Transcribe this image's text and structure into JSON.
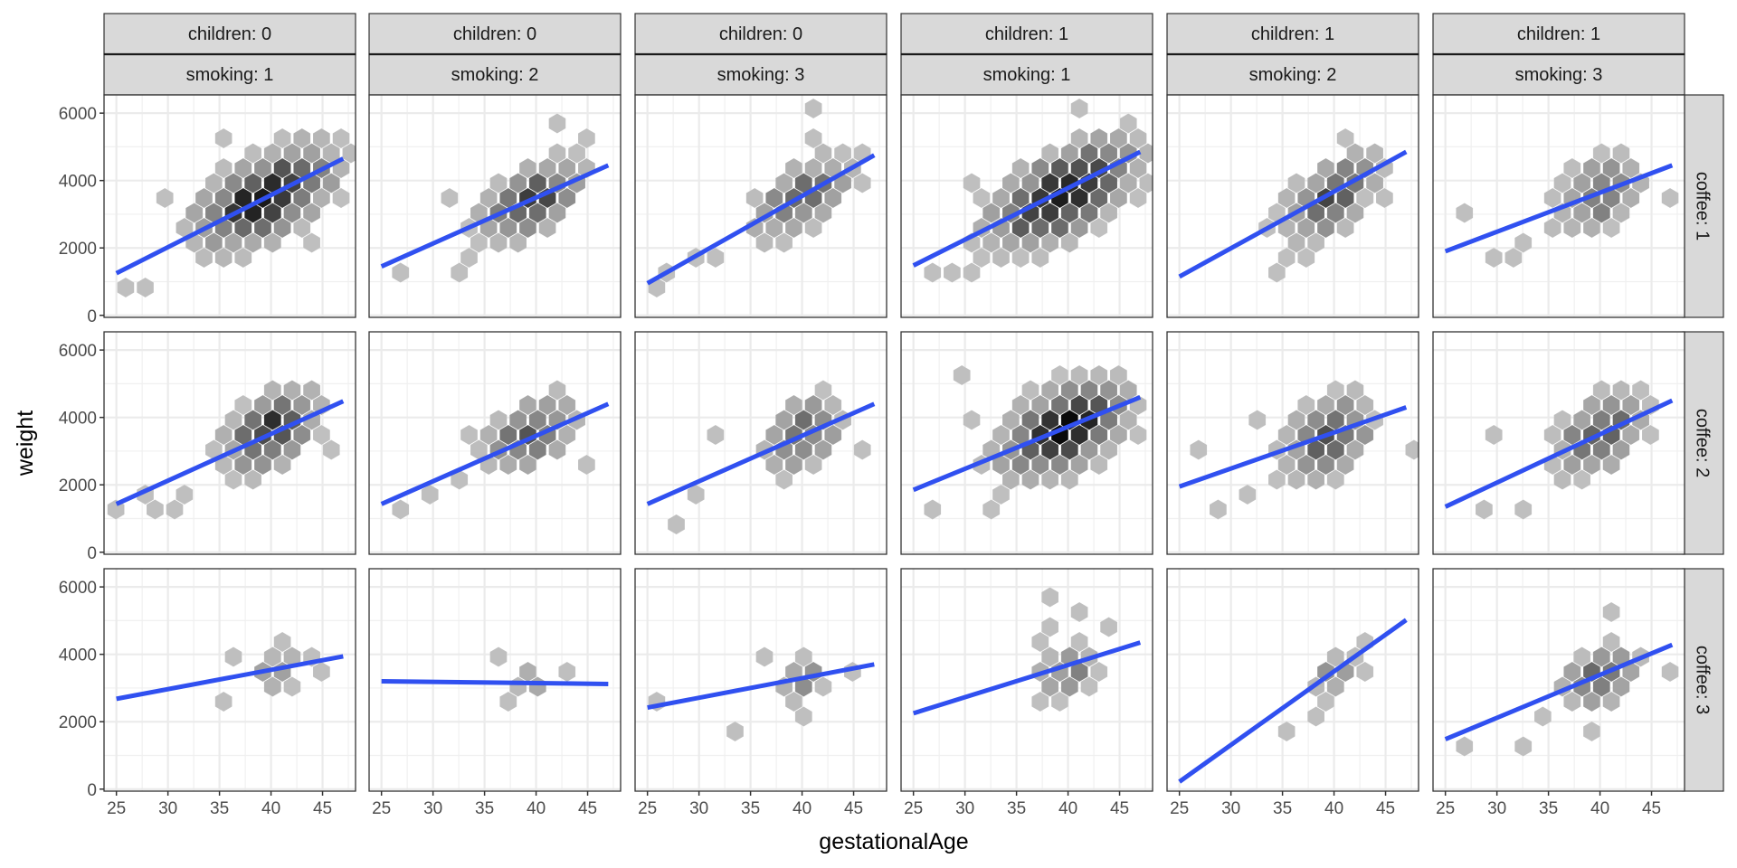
{
  "chart_data": {
    "type": "hexbin-facet",
    "title": "",
    "xlabel": "gestationalAge",
    "ylabel": "weight",
    "xlim": [
      23.8,
      48.2
    ],
    "ylim": [
      -60,
      6540
    ],
    "xticks": [
      25,
      30,
      35,
      40,
      45
    ],
    "yticks": [
      0,
      2000,
      4000,
      6000
    ],
    "grid": true,
    "facet_cols": [
      {
        "children": "children: 0",
        "smoking": "smoking: 1"
      },
      {
        "children": "children: 0",
        "smoking": "smoking: 2"
      },
      {
        "children": "children: 0",
        "smoking": "smoking: 3"
      },
      {
        "children": "children: 1",
        "smoking": "smoking: 1"
      },
      {
        "children": "children: 1",
        "smoking": "smoking: 2"
      },
      {
        "children": "children: 1",
        "smoking": "smoking: 3"
      }
    ],
    "facet_rows": [
      "coffee: 1",
      "coffee: 2",
      "coffee: 3"
    ],
    "line_color": "#3050f0",
    "fill_scale": {
      "low": "#c8c8c8",
      "high": "#0a0a0a"
    },
    "panels": [
      [
        {
          "fit": [
            [
              25,
              1250
            ],
            [
              47,
              4650
            ]
          ],
          "cloud": {
            "cx": 39.5,
            "cy": 3500,
            "sx": 3.6,
            "sy": 800,
            "rho": 0.55,
            "peak": 1.0
          },
          "outliers": [
            [
              26.5,
              1000
            ],
            [
              28,
              900
            ],
            [
              35,
              5100
            ],
            [
              29,
              3600
            ],
            [
              46.5,
              3400
            ],
            [
              43,
              2000
            ]
          ]
        },
        {
          "fit": [
            [
              25,
              1450
            ],
            [
              47,
              4450
            ]
          ],
          "cloud": {
            "cx": 39.5,
            "cy": 3450,
            "sx": 2.8,
            "sy": 650,
            "rho": 0.55,
            "peak": 0.7
          },
          "outliers": [
            [
              27,
              1100
            ],
            [
              27.5,
              1300
            ],
            [
              33,
              1300
            ],
            [
              33.5,
              1700
            ],
            [
              44,
              5100
            ],
            [
              42.5,
              5600
            ],
            [
              32.5,
              3400
            ]
          ]
        },
        {
          "fit": [
            [
              25,
              950
            ],
            [
              47,
              4750
            ]
          ],
          "cloud": {
            "cx": 40,
            "cy": 3500,
            "sx": 2.6,
            "sy": 650,
            "rho": 0.6,
            "peak": 0.55
          },
          "outliers": [
            [
              25,
              1000
            ],
            [
              26,
              1100
            ],
            [
              30,
              1500
            ],
            [
              32,
              1800
            ],
            [
              41,
              6000
            ],
            [
              41,
              5300
            ],
            [
              42,
              5300
            ],
            [
              45,
              4800
            ],
            [
              46.5,
              3900
            ]
          ]
        },
        {
          "fit": [
            [
              25,
              1480
            ],
            [
              47,
              4850
            ]
          ],
          "cloud": {
            "cx": 39.5,
            "cy": 3600,
            "sx": 3.8,
            "sy": 850,
            "rho": 0.6,
            "peak": 1.0
          },
          "outliers": [
            [
              26,
              1050
            ],
            [
              29.5,
              1100
            ],
            [
              31,
              1300
            ],
            [
              31.5,
              4100
            ],
            [
              32.5,
              3500
            ],
            [
              36,
              1800
            ],
            [
              40.5,
              6200
            ],
            [
              46,
              3700
            ]
          ]
        },
        {
          "fit": [
            [
              25,
              1150
            ],
            [
              47,
              4850
            ]
          ],
          "cloud": {
            "cx": 40,
            "cy": 3500,
            "sx": 2.6,
            "sy": 650,
            "rho": 0.55,
            "peak": 0.7
          },
          "outliers": [
            [
              35,
              1400
            ],
            [
              35,
              1800
            ],
            [
              37,
              1800
            ],
            [
              41,
              5300
            ],
            [
              43.5,
              3700
            ],
            [
              33.5,
              2600
            ]
          ]
        },
        {
          "fit": [
            [
              25,
              1900
            ],
            [
              47,
              4450
            ]
          ],
          "cloud": {
            "cx": 39.8,
            "cy": 3600,
            "sx": 2.3,
            "sy": 600,
            "rho": 0.4,
            "peak": 0.5
          },
          "outliers": [
            [
              27,
              3200
            ],
            [
              30,
              1600
            ],
            [
              31,
              1600
            ],
            [
              33,
              2100
            ],
            [
              46,
              3700
            ]
          ]
        }
      ],
      [
        {
          "fit": [
            [
              25,
              1430
            ],
            [
              47,
              4480
            ]
          ],
          "cloud": {
            "cx": 40,
            "cy": 3600,
            "sx": 2.5,
            "sy": 650,
            "rho": 0.5,
            "peak": 0.8
          },
          "outliers": [
            [
              25.5,
              1100
            ],
            [
              27,
              1500
            ],
            [
              28,
              1100
            ],
            [
              30,
              1300
            ],
            [
              32,
              1900
            ],
            [
              46.5,
              3200
            ]
          ]
        },
        {
          "fit": [
            [
              25,
              1430
            ],
            [
              47,
              4400
            ]
          ],
          "cloud": {
            "cx": 39.5,
            "cy": 3500,
            "sx": 2.4,
            "sy": 600,
            "rho": 0.5,
            "peak": 0.6
          },
          "outliers": [
            [
              26.5,
              1100
            ],
            [
              30,
              1800
            ],
            [
              32,
              2000
            ],
            [
              33.5,
              3400
            ],
            [
              45.5,
              2700
            ]
          ]
        },
        {
          "fit": [
            [
              25,
              1430
            ],
            [
              47,
              4400
            ]
          ],
          "cloud": {
            "cx": 40,
            "cy": 3500,
            "sx": 2.2,
            "sy": 600,
            "rho": 0.4,
            "peak": 0.5
          },
          "outliers": [
            [
              27.5,
              1000
            ],
            [
              28,
              800
            ],
            [
              30.5,
              1700
            ],
            [
              31.5,
              3400
            ],
            [
              45.5,
              2900
            ],
            [
              39,
              2100
            ]
          ]
        },
        {
          "fit": [
            [
              25,
              1850
            ],
            [
              47,
              4600
            ]
          ],
          "cloud": {
            "cx": 39.5,
            "cy": 3650,
            "sx": 3.3,
            "sy": 750,
            "rho": 0.45,
            "peak": 1.0
          },
          "outliers": [
            [
              26.5,
              1300
            ],
            [
              30.5,
              5300
            ],
            [
              31,
              4000
            ],
            [
              32,
              1300
            ],
            [
              33,
              1500
            ],
            [
              46,
              3600
            ]
          ]
        },
        {
          "fit": [
            [
              25,
              1950
            ],
            [
              47,
              4300
            ]
          ],
          "cloud": {
            "cx": 39.5,
            "cy": 3400,
            "sx": 2.4,
            "sy": 650,
            "rho": 0.4,
            "peak": 0.65
          },
          "outliers": [
            [
              26.5,
              3200
            ],
            [
              29.5,
              1300
            ],
            [
              31,
              1500
            ],
            [
              32,
              3900
            ],
            [
              33.5,
              2000
            ],
            [
              44,
              3800
            ],
            [
              47,
              3000
            ]
          ]
        },
        {
          "fit": [
            [
              25,
              1350
            ],
            [
              47,
              4500
            ]
          ],
          "cloud": {
            "cx": 40,
            "cy": 3500,
            "sx": 2.4,
            "sy": 650,
            "rho": 0.45,
            "peak": 0.6
          },
          "outliers": [
            [
              28,
              1350
            ],
            [
              30.5,
              3700
            ],
            [
              32,
              1350
            ],
            [
              45.5,
              3300
            ]
          ]
        }
      ],
      [
        {
          "fit": [
            [
              25,
              2680
            ],
            [
              47,
              3940
            ]
          ],
          "cloud": {
            "cx": 40.5,
            "cy": 3550,
            "sx": 1.3,
            "sy": 350,
            "rho": 0.2,
            "peak": 0.25
          },
          "outliers": [
            [
              35.8,
              3800
            ],
            [
              35.8,
              2400
            ],
            [
              40.6,
              4500
            ],
            [
              43.5,
              3800
            ],
            [
              44,
              3600
            ],
            [
              41.3,
              2900
            ]
          ]
        },
        {
          "fit": [
            [
              25,
              3200
            ],
            [
              47,
              3120
            ]
          ],
          "cloud": {
            "cx": 39.5,
            "cy": 3200,
            "sx": 0.8,
            "sy": 250,
            "rho": 0.0,
            "peak": 0.25
          },
          "outliers": [
            [
              37,
              3800
            ],
            [
              38,
              2400
            ],
            [
              42.5,
              3400
            ]
          ]
        },
        {
          "fit": [
            [
              25,
              2420
            ],
            [
              47,
              3700
            ]
          ],
          "cloud": {
            "cx": 40,
            "cy": 3300,
            "sx": 1.3,
            "sy": 380,
            "rho": 0.2,
            "peak": 0.3
          },
          "outliers": [
            [
              25,
              2800
            ],
            [
              34,
              1600
            ],
            [
              36,
              3800
            ],
            [
              45.5,
              3500
            ],
            [
              40,
              2300
            ]
          ]
        },
        {
          "fit": [
            [
              25,
              2250
            ],
            [
              47,
              4350
            ]
          ],
          "cloud": {
            "cx": 40,
            "cy": 3500,
            "sx": 1.8,
            "sy": 450,
            "rho": 0.3,
            "peak": 0.35
          },
          "outliers": [
            [
              36.5,
              2700
            ],
            [
              37.5,
              4400
            ],
            [
              38,
              5500
            ],
            [
              37.5,
              4800
            ],
            [
              43,
              4900
            ],
            [
              41.5,
              5100
            ]
          ]
        },
        {
          "fit": [
            [
              25,
              220
            ],
            [
              47,
              5020
            ]
          ],
          "cloud": {
            "cx": 40,
            "cy": 3400,
            "sx": 1.3,
            "sy": 400,
            "rho": 0.4,
            "peak": 0.3
          },
          "outliers": [
            [
              35.5,
              1900
            ],
            [
              39,
              2500
            ],
            [
              39,
              2100
            ],
            [
              42.5,
              4500
            ],
            [
              42.5,
              3300
            ]
          ]
        },
        {
          "fit": [
            [
              25,
              1480
            ],
            [
              47,
              4280
            ]
          ],
          "cloud": {
            "cx": 40,
            "cy": 3300,
            "sx": 2.0,
            "sy": 500,
            "rho": 0.3,
            "peak": 0.5
          },
          "outliers": [
            [
              27.5,
              1100
            ],
            [
              33,
              1300
            ],
            [
              35,
              2100
            ],
            [
              39,
              1500
            ],
            [
              41.5,
              5100
            ],
            [
              46,
              3700
            ]
          ]
        }
      ]
    ]
  }
}
